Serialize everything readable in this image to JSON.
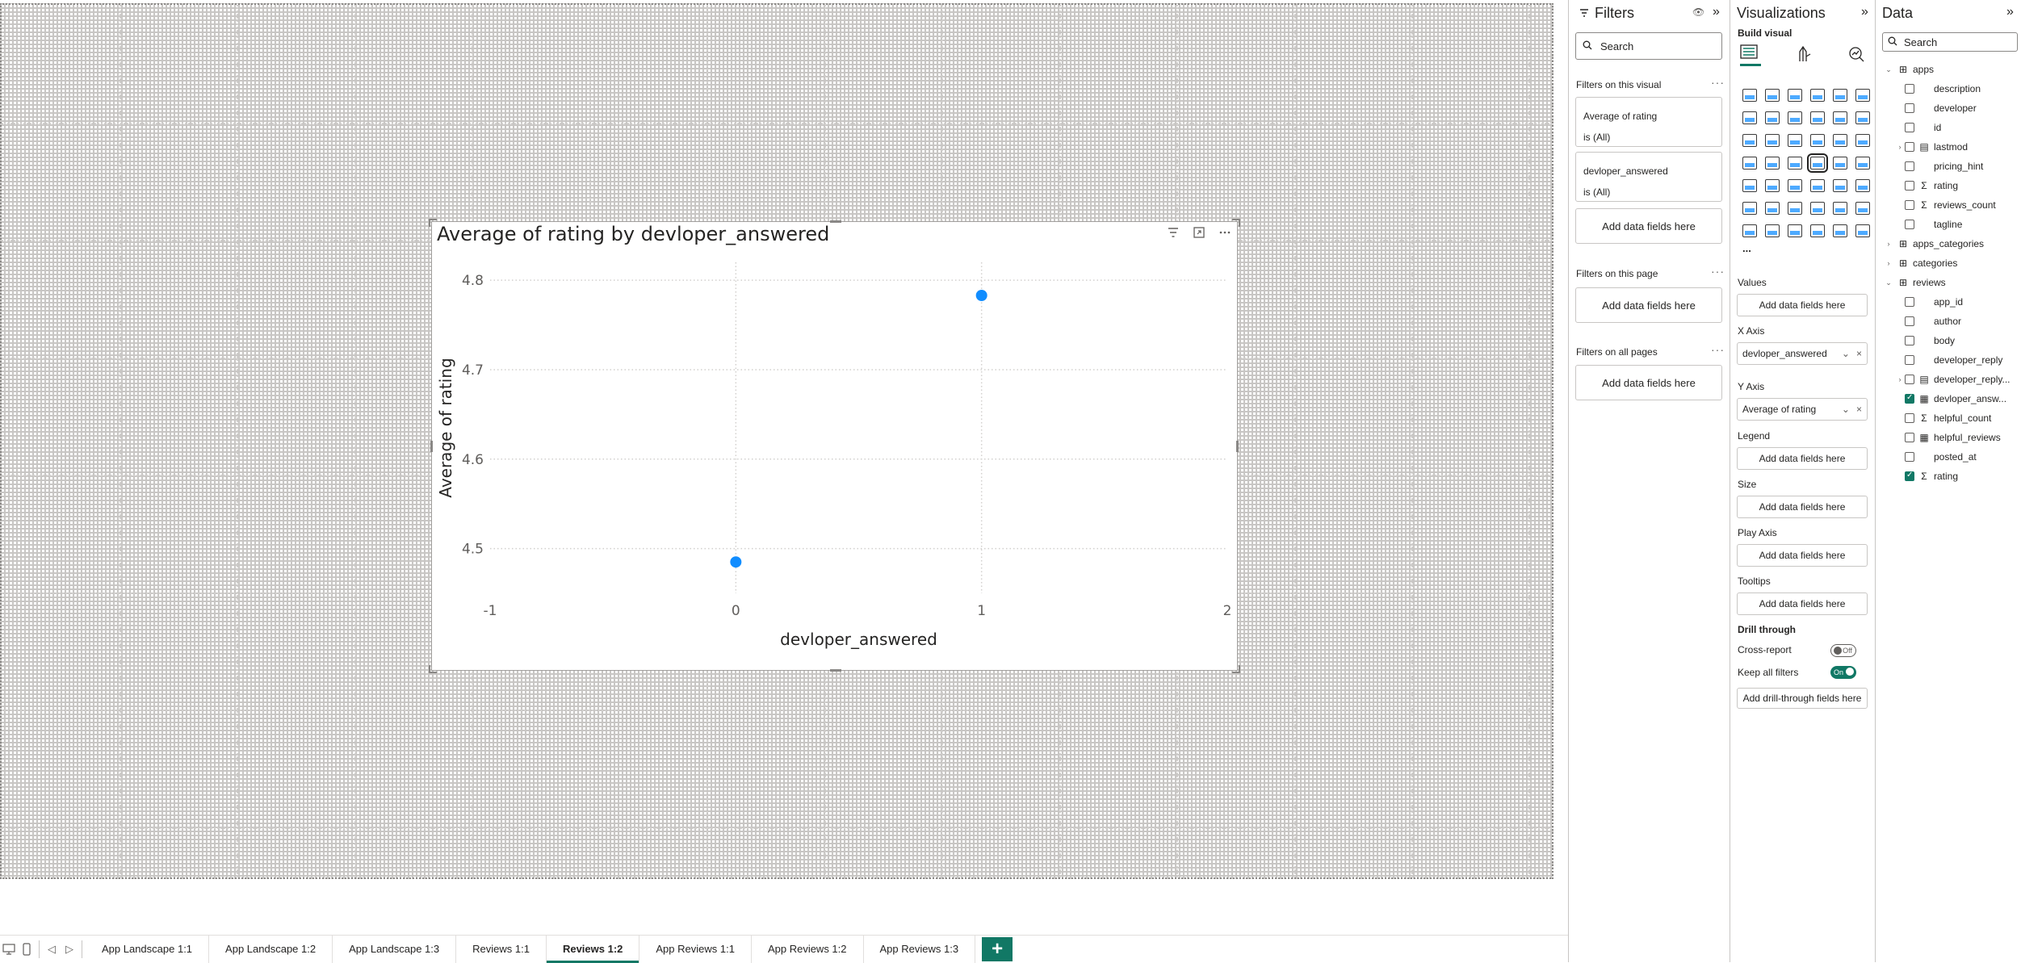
{
  "visual": {
    "title": "Average of rating by devloper_answered"
  },
  "chart_data": {
    "type": "scatter",
    "title": "Average of rating by devloper_answered",
    "xlabel": "devloper_answered",
    "ylabel": "Average of rating",
    "xlim": [
      -1,
      2
    ],
    "ylim": [
      4.45,
      4.82
    ],
    "x_ticks": [
      "-1",
      "0",
      "1",
      "2"
    ],
    "y_ticks": [
      "4.5",
      "4.6",
      "4.7",
      "4.8"
    ],
    "grid": true,
    "legend": "none",
    "point_color": "#118dff",
    "points": [
      {
        "x": 0,
        "y": 4.485
      },
      {
        "x": 1,
        "y": 4.783
      }
    ]
  },
  "tabs": {
    "items": [
      {
        "label": "App Landscape 1:1",
        "active": false
      },
      {
        "label": "App Landscape 1:2",
        "active": false
      },
      {
        "label": "App Landscape 1:3",
        "active": false
      },
      {
        "label": "Reviews 1:1",
        "active": false
      },
      {
        "label": "Reviews 1:2",
        "active": true
      },
      {
        "label": "App Reviews 1:1",
        "active": false
      },
      {
        "label": "App Reviews 1:2",
        "active": false
      },
      {
        "label": "App Reviews 1:3",
        "active": false
      }
    ],
    "add_label": "+"
  },
  "filters": {
    "title": "Filters",
    "search_placeholder": "Search",
    "on_visual_label": "Filters on this visual",
    "cards": [
      {
        "field": "Average of rating",
        "state": "is (All)"
      },
      {
        "field": "devloper_answered",
        "state": "is (All)"
      }
    ],
    "add_fields": "Add data fields here",
    "on_page_label": "Filters on this page",
    "on_all_pages_label": "Filters on all pages"
  },
  "visualizations": {
    "title": "Visualizations",
    "build_visual": "Build visual",
    "more": "...",
    "wells": {
      "values_label": "Values",
      "x_axis_label": "X Axis",
      "x_axis_value": "devloper_answered",
      "y_axis_label": "Y Axis",
      "y_axis_value": "Average of rating",
      "legend_label": "Legend",
      "size_label": "Size",
      "play_axis_label": "Play Axis",
      "tooltips_label": "Tooltips",
      "add_fields": "Add data fields here"
    },
    "drill": {
      "title": "Drill through",
      "cross_report": "Cross-report",
      "cross_report_state": "Off",
      "keep_filters": "Keep all filters",
      "keep_filters_state": "On",
      "add_drill": "Add drill-through fields here"
    },
    "accent": "#117865"
  },
  "data": {
    "title": "Data",
    "search_placeholder": "Search",
    "tables": {
      "apps": "apps",
      "apps_fields": [
        {
          "name": "description",
          "icon": "",
          "checked": false
        },
        {
          "name": "developer",
          "icon": "",
          "checked": false
        },
        {
          "name": "id",
          "icon": "",
          "checked": false
        },
        {
          "name": "lastmod",
          "icon": "calendar",
          "checked": false,
          "expandable": true
        },
        {
          "name": "pricing_hint",
          "icon": "",
          "checked": false
        },
        {
          "name": "rating",
          "icon": "sigma",
          "checked": false
        },
        {
          "name": "reviews_count",
          "icon": "sigma",
          "checked": false
        },
        {
          "name": "tagline",
          "icon": "",
          "checked": false
        }
      ],
      "apps_categories": "apps_categories",
      "categories": "categories",
      "reviews": "reviews",
      "reviews_fields": [
        {
          "name": "app_id",
          "icon": "",
          "checked": false
        },
        {
          "name": "author",
          "icon": "",
          "checked": false
        },
        {
          "name": "body",
          "icon": "",
          "checked": false
        },
        {
          "name": "developer_reply",
          "icon": "",
          "checked": false
        },
        {
          "name": "developer_reply...",
          "icon": "calendar",
          "checked": false,
          "expandable": true
        },
        {
          "name": "devloper_answ...",
          "icon": "calculated",
          "checked": true
        },
        {
          "name": "helpful_count",
          "icon": "sigma",
          "checked": false
        },
        {
          "name": "helpful_reviews",
          "icon": "calculated",
          "checked": false
        },
        {
          "name": "posted_at",
          "icon": "",
          "checked": false
        },
        {
          "name": "rating",
          "icon": "sigma",
          "checked": true
        }
      ]
    }
  }
}
